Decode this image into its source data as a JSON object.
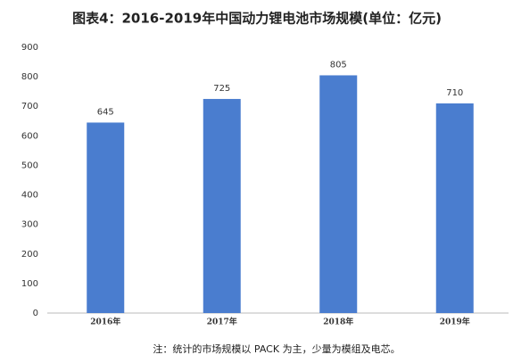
{
  "chart_data": {
    "type": "bar",
    "title": "图表4：2016-2019年中国动力锂电池市场规模(单位：亿元)",
    "categories": [
      "2016年",
      "2017年",
      "2018年",
      "2019年"
    ],
    "values": [
      645,
      725,
      805,
      710
    ],
    "color": "#4a7dcf",
    "ylim": [
      0,
      900
    ],
    "yticks": [
      0,
      100,
      200,
      300,
      400,
      500,
      600,
      700,
      800,
      900
    ],
    "grid": false,
    "note": "注：统计的市场规模以 PACK 为主，少量为模组及电芯。"
  }
}
